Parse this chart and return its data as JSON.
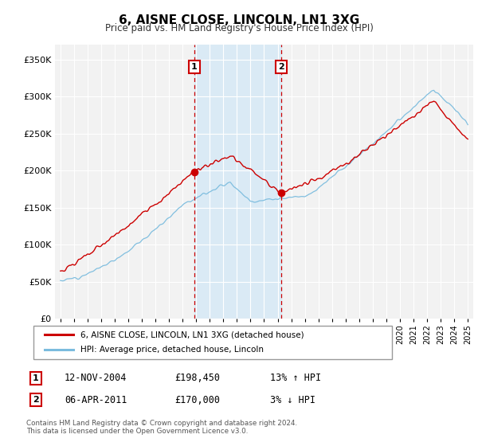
{
  "title": "6, AISNE CLOSE, LINCOLN, LN1 3XG",
  "subtitle": "Price paid vs. HM Land Registry's House Price Index (HPI)",
  "legend_line1": "6, AISNE CLOSE, LINCOLN, LN1 3XG (detached house)",
  "legend_line2": "HPI: Average price, detached house, Lincoln",
  "marker1_date": 2004.87,
  "marker1_value": 198450,
  "marker1_label": "1",
  "marker1_info": "12-NOV-2004",
  "marker1_price": "£198,450",
  "marker1_hpi": "13% ↑ HPI",
  "marker2_date": 2011.27,
  "marker2_value": 170000,
  "marker2_label": "2",
  "marker2_info": "06-APR-2011",
  "marker2_price": "£170,000",
  "marker2_hpi": "3% ↓ HPI",
  "footer1": "Contains HM Land Registry data © Crown copyright and database right 2024.",
  "footer2": "This data is licensed under the Open Government Licence v3.0.",
  "hpi_color": "#7bbcde",
  "price_color": "#cc0000",
  "marker_color": "#cc0000",
  "shade_color": "#daeaf5",
  "bg_color": "#f2f2f2",
  "grid_color": "#ffffff",
  "ylim": [
    0,
    370000
  ],
  "xlim_start": 1994.6,
  "xlim_end": 2025.4
}
